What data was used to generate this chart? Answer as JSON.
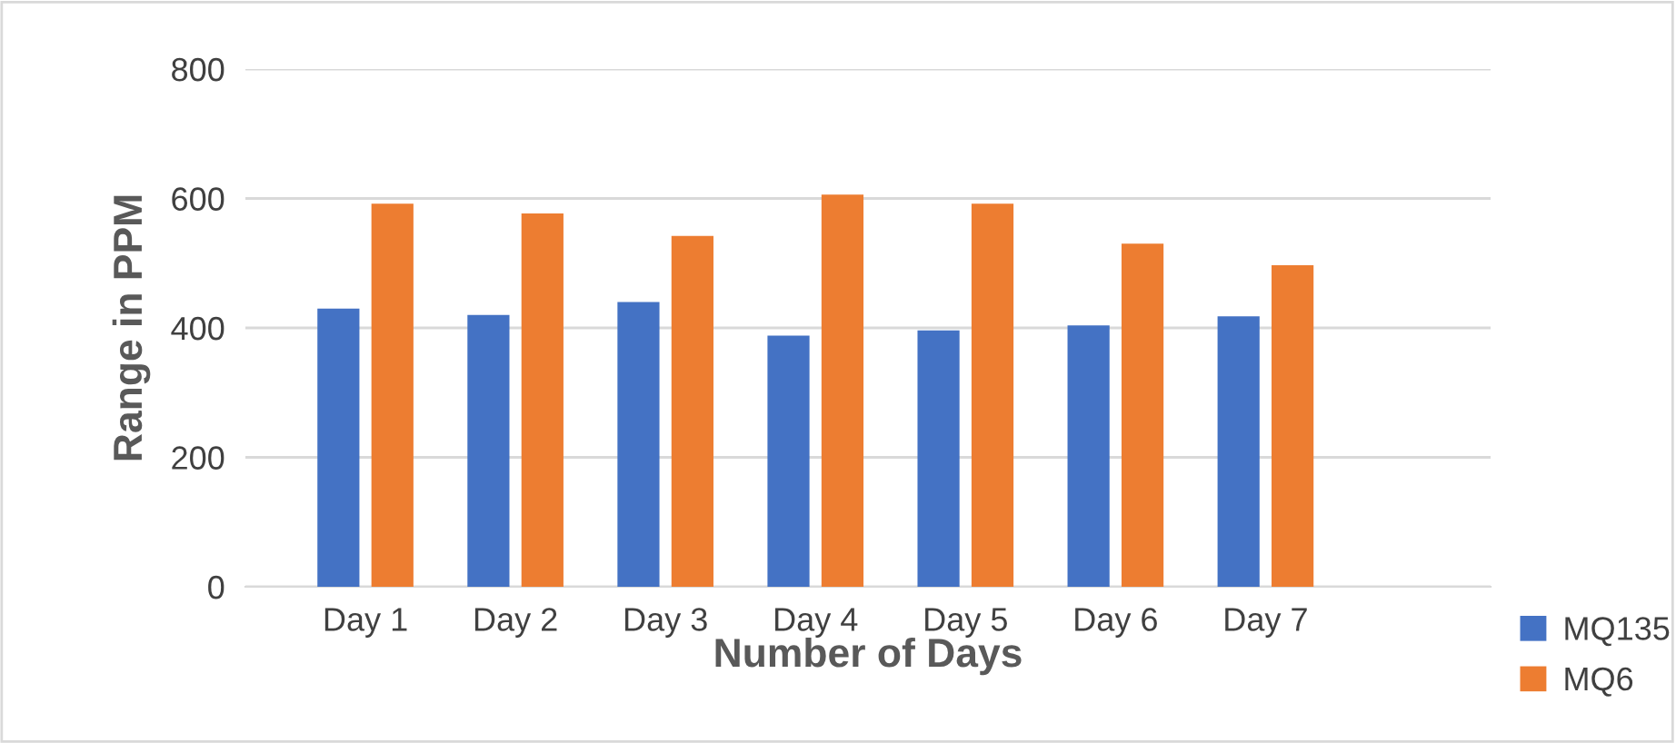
{
  "chart_data": {
    "type": "bar",
    "xlabel": "Number of Days",
    "ylabel": "Range in PPM",
    "categories": [
      "Day 1",
      "Day 2",
      "Day 3",
      "Day 4",
      "Day 5",
      "Day 6",
      "Day 7"
    ],
    "series": [
      {
        "name": "MQ135",
        "color": "#4472c4",
        "values": [
          430,
          420,
          440,
          388,
          396,
          404,
          418
        ]
      },
      {
        "name": "MQ6",
        "color": "#ed7d31",
        "values": [
          592,
          577,
          542,
          606,
          592,
          530,
          497
        ]
      }
    ],
    "ylim": [
      0,
      800
    ],
    "yticks": [
      0,
      200,
      400,
      600,
      800
    ],
    "grid": "y",
    "legend": "bottom right"
  }
}
